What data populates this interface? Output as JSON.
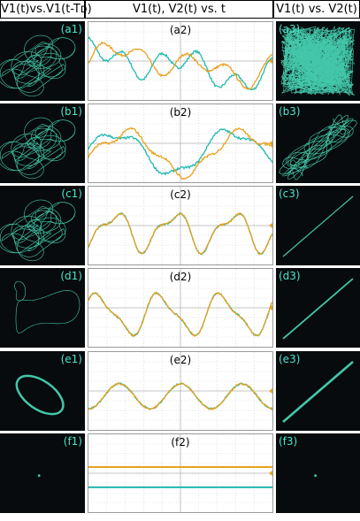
{
  "headers": {
    "left": "V1(t)vs.V1(t-Tᴅ)",
    "mid": "V1(t), V2(t) vs. t",
    "right": "V1(t) vs. V2(t)"
  },
  "rows": [
    {
      "left": "(a1)",
      "mid": "(a2)",
      "right": "(a3)"
    },
    {
      "left": "(b1)",
      "mid": "(b2)",
      "right": "(b3)"
    },
    {
      "left": "(c1)",
      "mid": "(c2)",
      "right": "(c3)"
    },
    {
      "left": "(d1)",
      "mid": "(d2)",
      "right": "(d3)"
    },
    {
      "left": "(e1)",
      "mid": "(e2)",
      "right": "(e3)"
    },
    {
      "left": "(f1)",
      "mid": "(f2)",
      "right": "(f3)"
    }
  ],
  "colors": {
    "trace_v1": "#e8a11c",
    "trace_v2": "#1fb8b0",
    "phosphor": "#4de8c6",
    "scope_bg": "#070b0d"
  }
}
